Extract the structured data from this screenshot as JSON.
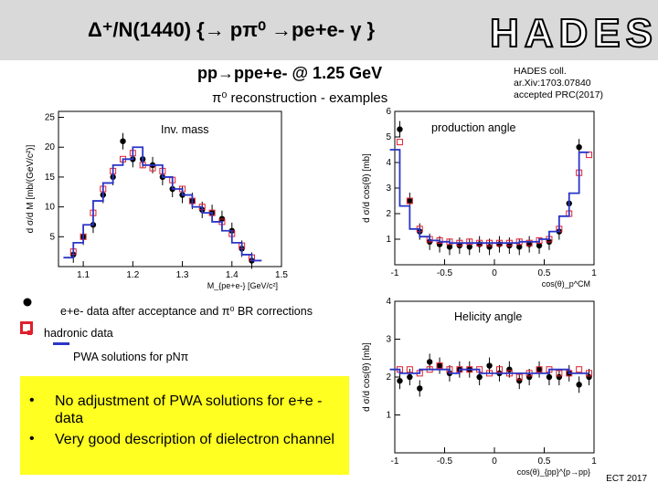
{
  "banner": {
    "title": "Δ⁺/N(1440) {→ pπ⁰ →pe+e- γ }",
    "logo": "HADES"
  },
  "reaction": "pp→ppe+e- @ 1.25 GeV",
  "reconstruction": "π⁰ reconstruction - examples",
  "reference": "HADES coll.\nar.Xiv:1703.07840\naccepted PRC(2017)",
  "legend": {
    "data": "e+e- data after acceptance and π⁰ BR corrections",
    "hadronic": "hadronic data",
    "pwa": "PWA solutions for pNπ"
  },
  "conclusions": [
    "No adjustment of PWA solutions for e+e - data",
    "Very good description of dielectron channel"
  ],
  "footer": "ECT 2017",
  "colors": {
    "data": "#000000",
    "hadronic": "#e0202e",
    "pwa": "#2a35c8",
    "highlight": "#ffff22",
    "banner": "#d9d9d9"
  },
  "chart_data": [
    {
      "type": "scatter",
      "panel_label": "Inv. mass",
      "xlabel": "M_{pe+e-} [GeV/c²]",
      "ylabel": "d σ/d M [mb/(GeV/c²)]",
      "xlim": [
        1.05,
        1.5
      ],
      "ylim": [
        0,
        26
      ],
      "xticks": [
        "1.1",
        "1.2",
        "1.3",
        "1.4",
        "1.5"
      ],
      "yticks": [
        "5",
        "10",
        "15",
        "20",
        "25"
      ],
      "series": [
        {
          "kind": "data",
          "x": [
            1.08,
            1.1,
            1.12,
            1.14,
            1.16,
            1.18,
            1.2,
            1.22,
            1.24,
            1.26,
            1.28,
            1.3,
            1.32,
            1.34,
            1.36,
            1.38,
            1.4,
            1.42,
            1.44
          ],
          "y": [
            2,
            5,
            7,
            12,
            15,
            21,
            18,
            18,
            17,
            15,
            13,
            12,
            11,
            9.5,
            9,
            8,
            6,
            3,
            1
          ]
        },
        {
          "kind": "hadronic",
          "x": [
            1.08,
            1.1,
            1.12,
            1.14,
            1.16,
            1.18,
            1.2,
            1.22,
            1.24,
            1.26,
            1.28,
            1.3,
            1.32,
            1.34,
            1.36,
            1.38,
            1.4,
            1.42,
            1.44
          ],
          "y": [
            2.5,
            5,
            9,
            13,
            16,
            18,
            19,
            17,
            16.5,
            16,
            14.5,
            13,
            11,
            10,
            9,
            7.5,
            5.5,
            3.5,
            1.5
          ]
        },
        {
          "kind": "pwa",
          "x": [
            1.07,
            1.09,
            1.11,
            1.13,
            1.15,
            1.17,
            1.19,
            1.21,
            1.23,
            1.25,
            1.27,
            1.29,
            1.31,
            1.33,
            1.35,
            1.37,
            1.39,
            1.41,
            1.43,
            1.45
          ],
          "y": [
            1.5,
            4,
            7,
            11,
            14,
            17,
            18,
            20,
            17,
            17,
            15,
            13,
            12,
            10,
            9,
            7.5,
            6,
            4,
            2,
            1
          ]
        }
      ]
    },
    {
      "type": "scatter",
      "panel_label": "production angle",
      "xlabel": "cos(θ)_p^CM",
      "ylabel": "d σ/d cos(θ) [mb]",
      "xlim": [
        -1,
        1
      ],
      "ylim": [
        0,
        6
      ],
      "xticks": [
        "-1",
        "-0.5",
        "0",
        "0.5",
        "1"
      ],
      "yticks": [
        "1",
        "2",
        "3",
        "4",
        "5",
        "6"
      ],
      "series": [
        {
          "kind": "data",
          "x": [
            -0.95,
            -0.85,
            -0.75,
            -0.65,
            -0.55,
            -0.45,
            -0.35,
            -0.25,
            -0.15,
            -0.05,
            0.05,
            0.15,
            0.25,
            0.35,
            0.45,
            0.55,
            0.65,
            0.75,
            0.85
          ],
          "y": [
            5.3,
            2.5,
            1.3,
            0.9,
            0.8,
            0.7,
            0.75,
            0.7,
            0.8,
            0.7,
            0.8,
            0.75,
            0.7,
            0.8,
            0.75,
            0.9,
            1.3,
            2.4,
            4.6
          ]
        },
        {
          "kind": "hadronic",
          "x": [
            -0.95,
            -0.85,
            -0.75,
            -0.65,
            -0.55,
            -0.45,
            -0.35,
            -0.25,
            -0.15,
            -0.05,
            0.05,
            0.15,
            0.25,
            0.35,
            0.45,
            0.55,
            0.65,
            0.75,
            0.85,
            0.95
          ],
          "y": [
            4.8,
            2.5,
            1.4,
            1.0,
            0.95,
            0.9,
            0.85,
            0.9,
            0.85,
            0.85,
            0.85,
            0.85,
            0.9,
            0.85,
            0.95,
            1.0,
            1.4,
            2.0,
            3.6,
            4.3
          ]
        },
        {
          "kind": "pwa",
          "x": [
            -1.0,
            -0.9,
            -0.8,
            -0.7,
            -0.6,
            -0.5,
            -0.4,
            -0.3,
            -0.2,
            -0.1,
            0.0,
            0.1,
            0.2,
            0.3,
            0.4,
            0.5,
            0.6,
            0.7,
            0.8,
            0.9
          ],
          "y": [
            4.5,
            2.3,
            1.4,
            1.1,
            0.95,
            0.9,
            0.85,
            0.85,
            0.85,
            0.85,
            0.85,
            0.85,
            0.85,
            0.9,
            0.9,
            1.0,
            1.3,
            1.9,
            2.8,
            4.4
          ]
        }
      ]
    },
    {
      "type": "scatter",
      "panel_label": "Helicity angle",
      "xlabel": "cos(θ)_{pp}^{p→pp}",
      "ylabel": "d σ/d cos(θ) [mb]",
      "xlim": [
        -1,
        1
      ],
      "ylim": [
        0,
        4
      ],
      "xticks": [
        "-1",
        "-0.5",
        "0",
        "0.5",
        "1"
      ],
      "yticks": [
        "1",
        "2",
        "3",
        "4"
      ],
      "series": [
        {
          "kind": "data",
          "x": [
            -0.95,
            -0.85,
            -0.75,
            -0.65,
            -0.55,
            -0.45,
            -0.35,
            -0.25,
            -0.15,
            -0.05,
            0.05,
            0.15,
            0.25,
            0.35,
            0.45,
            0.55,
            0.65,
            0.75,
            0.85,
            0.95
          ],
          "y": [
            1.9,
            2.0,
            1.7,
            2.4,
            2.3,
            2.1,
            2.2,
            2.2,
            2.0,
            2.3,
            2.1,
            2.2,
            1.9,
            2.0,
            2.2,
            2.0,
            2.0,
            2.1,
            1.8,
            2.0
          ]
        },
        {
          "kind": "hadronic",
          "x": [
            -0.95,
            -0.85,
            -0.75,
            -0.65,
            -0.55,
            -0.45,
            -0.35,
            -0.25,
            -0.15,
            -0.05,
            0.05,
            0.15,
            0.25,
            0.35,
            0.45,
            0.55,
            0.65,
            0.75,
            0.85,
            0.95
          ],
          "y": [
            2.2,
            2.2,
            2.1,
            2.2,
            2.3,
            2.2,
            2.2,
            2.2,
            2.2,
            2.1,
            2.2,
            2.1,
            2.0,
            2.1,
            2.2,
            2.2,
            2.1,
            2.1,
            2.2,
            2.1
          ]
        },
        {
          "kind": "pwa",
          "x": [
            -1.0,
            -0.9,
            -0.8,
            -0.7,
            -0.6,
            -0.5,
            -0.4,
            -0.3,
            -0.2,
            -0.1,
            0.0,
            0.1,
            0.2,
            0.3,
            0.4,
            0.5,
            0.6,
            0.7,
            0.8,
            0.9
          ],
          "y": [
            2.2,
            2.1,
            2.1,
            2.2,
            2.2,
            2.2,
            2.1,
            2.2,
            2.2,
            2.1,
            2.1,
            2.1,
            2.1,
            2.1,
            2.1,
            2.1,
            2.2,
            2.2,
            2.1,
            2.1
          ]
        }
      ]
    }
  ]
}
